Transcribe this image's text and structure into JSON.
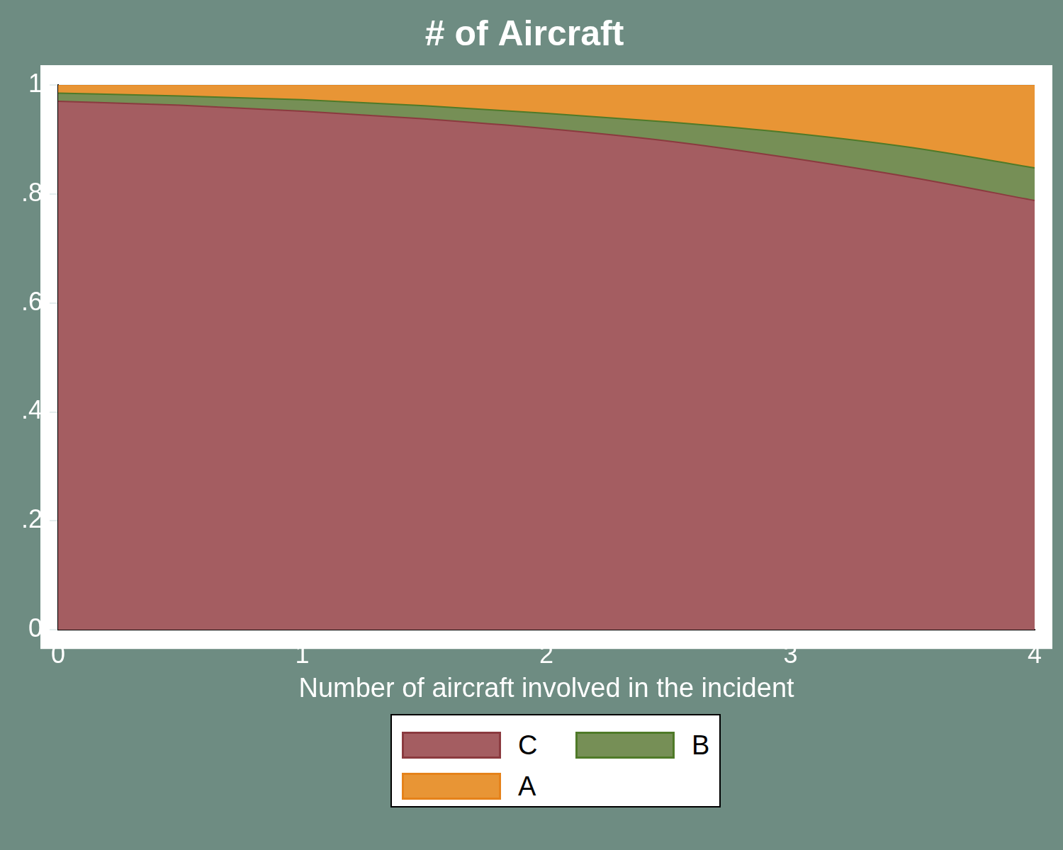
{
  "chart_data": {
    "type": "area",
    "title": "# of Aircraft",
    "x_label": "Number of aircraft involved in the incident",
    "stacked": true,
    "grid": true,
    "legend": "bottom",
    "x": [
      0,
      0.5,
      1,
      1.5,
      2,
      2.5,
      3,
      3.5,
      4
    ],
    "series": [
      {
        "name": "C",
        "color": "#a45d61",
        "values": [
          0.97,
          0.963,
          0.952,
          0.938,
          0.92,
          0.897,
          0.866,
          0.83,
          0.788
        ]
      },
      {
        "name": "B",
        "color": "#768f56",
        "values": [
          0.015,
          0.017,
          0.021,
          0.024,
          0.028,
          0.035,
          0.046,
          0.055,
          0.06
        ]
      },
      {
        "name": "A",
        "color": "#e89535",
        "values": [
          0.015,
          0.02,
          0.027,
          0.038,
          0.052,
          0.068,
          0.088,
          0.115,
          0.152
        ]
      }
    ],
    "xlim": [
      0,
      4
    ],
    "xticks": [
      0,
      1,
      2,
      3,
      4
    ],
    "ylim": [
      0,
      1
    ],
    "yticks": [
      0,
      {
        "value": 0.2,
        "label": ".2"
      },
      {
        "value": 0.4,
        "label": ".4"
      },
      {
        "value": 0.6,
        "label": ".6"
      },
      {
        "value": 0.8,
        "label": ".8"
      },
      1
    ]
  }
}
